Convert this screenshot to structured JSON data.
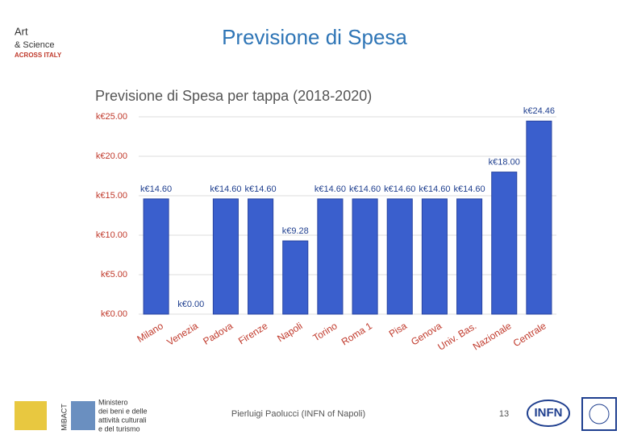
{
  "slide_title": "Previsione di Spesa",
  "header_logo": {
    "line1": "Art",
    "line2": "& Science",
    "line3": "ACROSS ITALY"
  },
  "footer": {
    "author": "Pierluigi Paolucci (INFN of Napoli)",
    "page": "13",
    "ministry_logo": [
      "Ministero",
      "dei beni e delle",
      "attività culturali",
      "e del turismo"
    ],
    "mibact": "MiBACT",
    "infn": "INFN"
  },
  "chart_data": {
    "type": "bar",
    "title": "Previsione di Spesa per tappa (2018-2020)",
    "categories": [
      "Milano",
      "Venezia",
      "Padova",
      "Firenze",
      "Napoli",
      "Torino",
      "Roma 1",
      "Pisa",
      "Genova",
      "Univ. Bas.",
      "Nazionale",
      "Centrale"
    ],
    "values": [
      14.6,
      0,
      14.6,
      14.6,
      9.28,
      14.6,
      14.6,
      14.6,
      14.6,
      14.6,
      18,
      24.46
    ],
    "value_labels": [
      "k€14.60",
      "k€0.00",
      "k€14.60",
      "k€14.60",
      "k€9.28",
      "k€14.60",
      "k€14.60",
      "k€14.60",
      "k€14.60",
      "k€14.60",
      "k€18.00",
      "k€24.46"
    ],
    "color": "#3a5fcd",
    "ylim": [
      0,
      25
    ],
    "yticks": [
      {
        "value": 0,
        "label": "k€0.00"
      },
      {
        "value": 5,
        "label": "k€5.00"
      },
      {
        "value": 10,
        "label": "k€10.00"
      },
      {
        "value": 15,
        "label": "k€15.00"
      },
      {
        "value": 20,
        "label": "k€20.00"
      },
      {
        "value": 25,
        "label": "k€25.00"
      }
    ],
    "grid": true
  }
}
